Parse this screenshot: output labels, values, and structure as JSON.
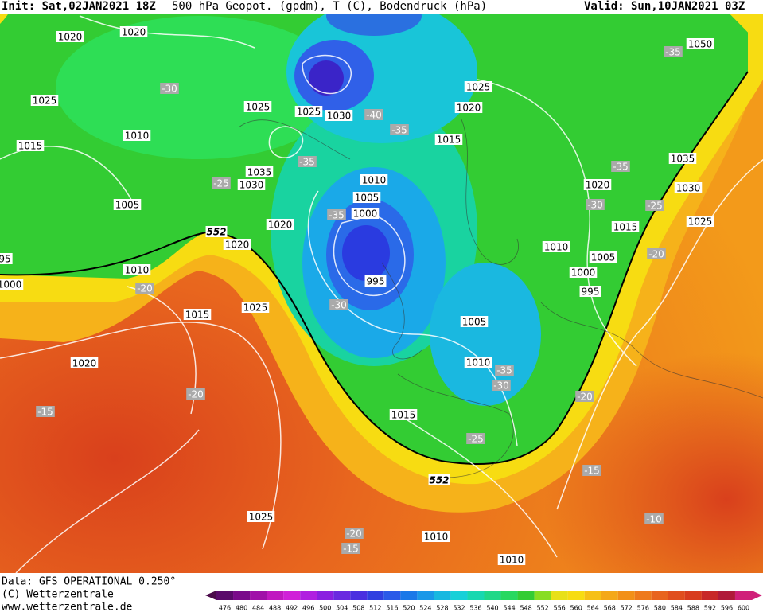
{
  "header": {
    "init": "Init: Sat,02JAN2021 18Z",
    "title": "500 hPa Geopot. (gpdm), T (C), Bodendruck (hPa)",
    "valid": "Valid: Sun,10JAN2021 03Z"
  },
  "map": {
    "pressure_labels": [
      1020,
      1020,
      1025,
      1015,
      1010,
      1005,
      1025,
      1025,
      1030,
      1035,
      1030,
      1015,
      1025,
      1020,
      1010,
      1005,
      1000,
      1020,
      1020,
      1010,
      95,
      1000,
      1015,
      1025,
      995,
      1005,
      1010,
      1015,
      1020,
      1025,
      1010,
      1010,
      1050,
      1020,
      1035,
      1030,
      1025,
      1015,
      1010,
      1005,
      1000,
      995
    ],
    "temperature_labels": [
      -30,
      -40,
      -35,
      -35,
      -25,
      -35,
      -20,
      -30,
      -35,
      -30,
      -25,
      -20,
      -15,
      -20,
      -15,
      -35,
      -35,
      -30,
      -25,
      -20,
      -20,
      -15,
      -10
    ],
    "geopotential_labels": [
      552,
      552
    ]
  },
  "footer": {
    "source": "Data: GFS OPERATIONAL 0.250°",
    "copyright": "(C) Wetterzentrale",
    "url": "www.wetterzentrale.de"
  },
  "scale": {
    "ticks": [
      476,
      480,
      484,
      488,
      492,
      496,
      500,
      504,
      508,
      512,
      516,
      520,
      524,
      528,
      532,
      536,
      540,
      544,
      548,
      552,
      556,
      560,
      564,
      568,
      572,
      576,
      580,
      584,
      588,
      592,
      596,
      600
    ]
  }
}
